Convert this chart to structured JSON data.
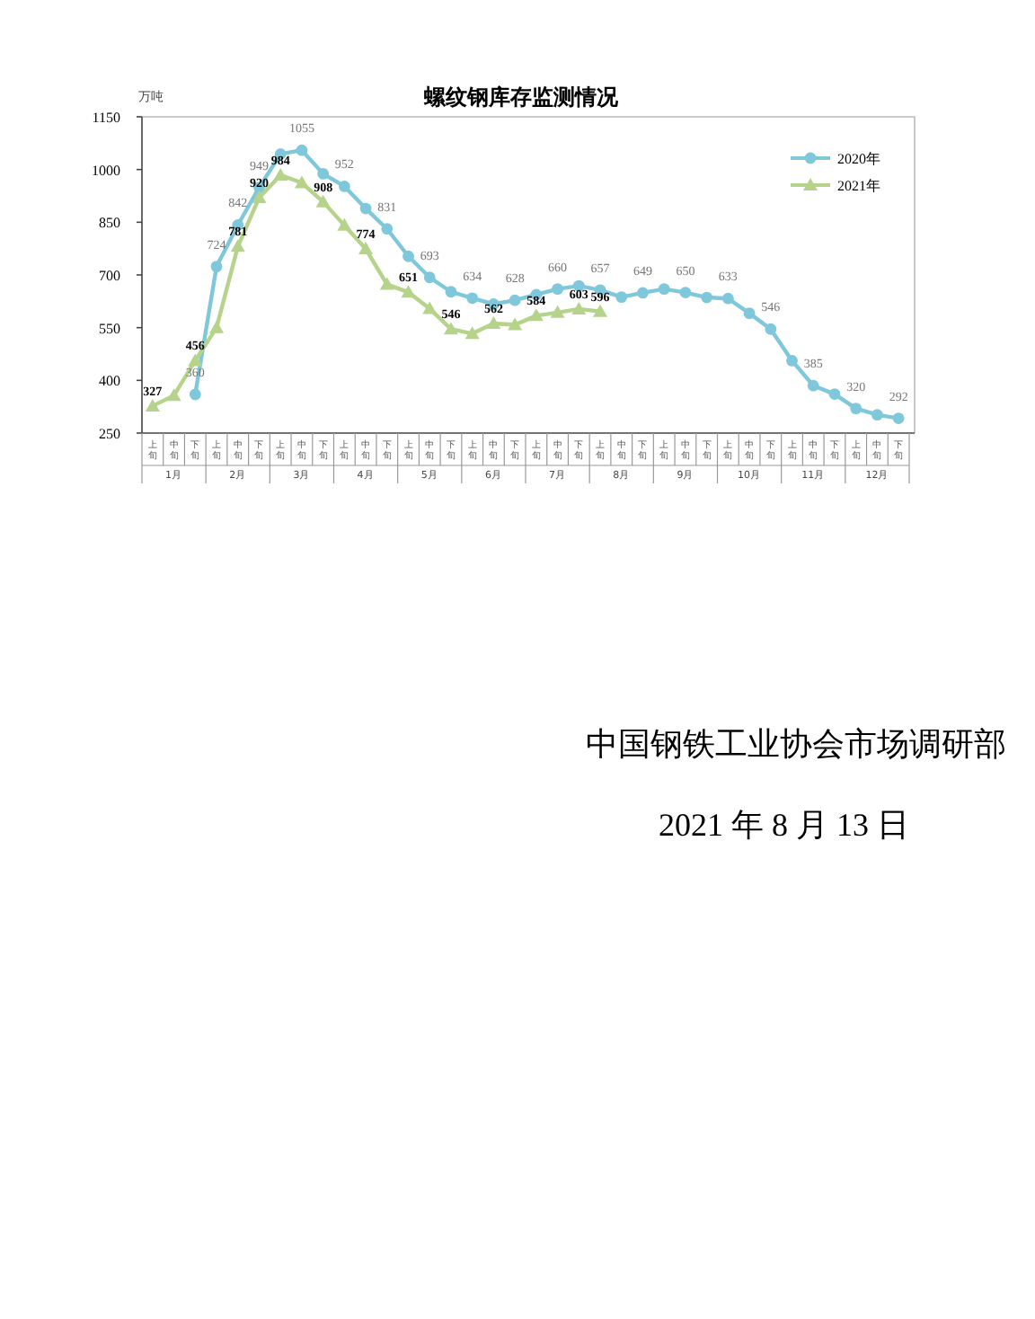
{
  "chart_data": {
    "type": "line",
    "title": "螺纹钢库存监测情况",
    "ylabel": "万吨",
    "categories": [
      "上旬",
      "中旬",
      "下旬",
      "上旬",
      "中旬",
      "下旬",
      "上旬",
      "中旬",
      "下旬",
      "上旬",
      "中旬",
      "下旬",
      "上旬",
      "中旬",
      "下旬",
      "上旬",
      "中旬",
      "下旬",
      "上旬",
      "中旬",
      "下旬",
      "上旬",
      "中旬",
      "下旬",
      "上旬",
      "中旬",
      "下旬",
      "上旬",
      "中旬",
      "下旬",
      "上旬",
      "中旬",
      "下旬",
      "上旬",
      "中旬",
      "下旬"
    ],
    "series": [
      {
        "name": "2020年",
        "color": "#7fc8dc",
        "marker": "circle",
        "values": [
          null,
          null,
          360,
          724,
          842,
          949,
          1044,
          1055,
          988,
          952,
          889,
          831,
          753,
          693,
          652,
          634,
          617,
          628,
          644,
          660,
          669,
          657,
          637,
          649,
          660,
          650,
          636,
          633,
          591,
          546,
          456,
          385,
          361,
          320,
          302,
          292
        ],
        "value_labels": [
          null,
          null,
          "360",
          "724",
          "842",
          "949",
          null,
          "1055",
          null,
          "952",
          null,
          "831",
          null,
          "693",
          null,
          "634",
          null,
          "628",
          null,
          "660",
          null,
          "657",
          null,
          "649",
          null,
          "650",
          null,
          "633",
          null,
          "546",
          null,
          "385",
          null,
          "320",
          null,
          "292"
        ]
      },
      {
        "name": "2021年",
        "color": "#b5d38a",
        "marker": "triangle",
        "values": [
          327,
          357,
          456,
          550,
          781,
          920,
          984,
          962,
          908,
          841,
          774,
          673,
          651,
          604,
          546,
          533,
          562,
          558,
          584,
          593,
          603,
          596,
          null,
          null,
          null,
          null,
          null,
          null,
          null,
          null,
          null,
          null,
          null,
          null,
          null,
          null
        ],
        "value_labels": [
          "327",
          null,
          "456",
          null,
          "781",
          "920",
          "984",
          null,
          "908",
          null,
          "774",
          null,
          "651",
          null,
          "546",
          null,
          "562",
          null,
          "584",
          null,
          "603",
          "596",
          null,
          null,
          null,
          null,
          null,
          null,
          null,
          null,
          null,
          null,
          null,
          null,
          null,
          null
        ]
      }
    ],
    "ylim": [
      250,
      1150
    ],
    "yticks": [
      250,
      400,
      550,
      700,
      850,
      1000,
      1150
    ],
    "grid": false,
    "legend": "top right",
    "line_style": "solid",
    "annotations": [
      "1月",
      "2月",
      "3月",
      "4月",
      "5月",
      "6月",
      "7月",
      "8月",
      "9月",
      "10月",
      "11月",
      "12月",
      "中国钢铁工业协会市场调研部",
      "2021 年 8 月 13 日"
    ]
  }
}
